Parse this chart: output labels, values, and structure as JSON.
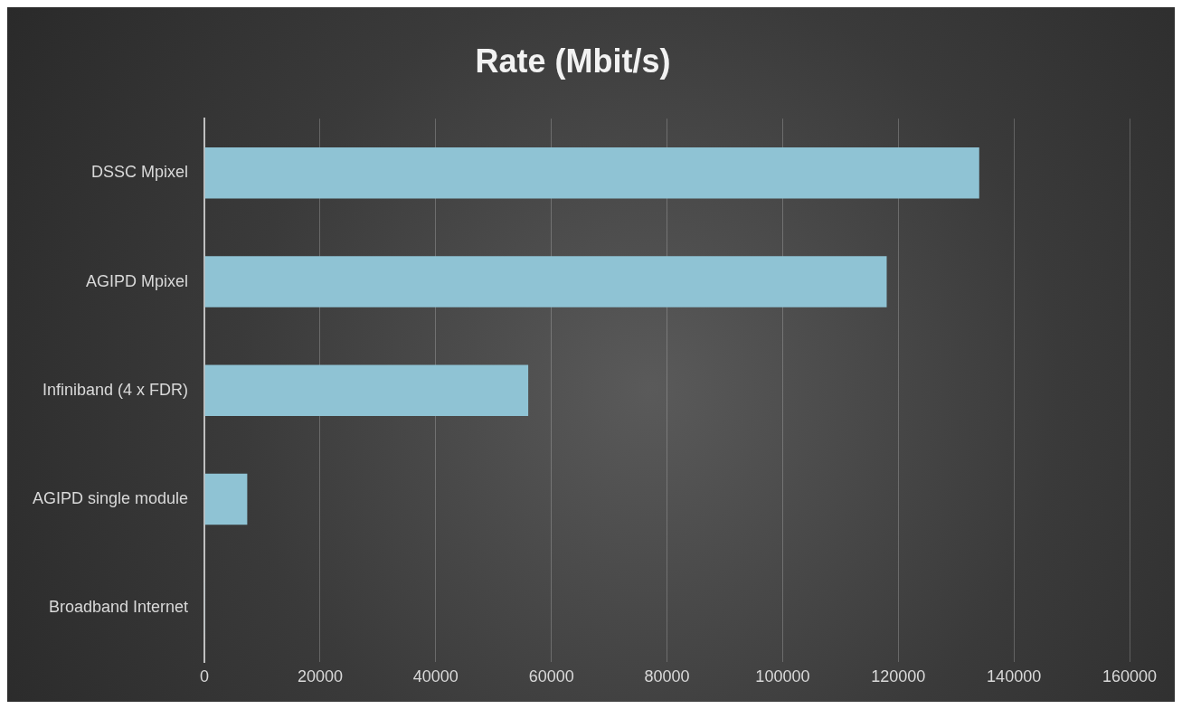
{
  "chart_data": {
    "type": "bar",
    "orientation": "horizontal",
    "title": "Rate (Mbit/s)",
    "categories": [
      "DSSC Mpixel",
      "AGIPD Mpixel",
      "Infiniband (4 x FDR)",
      "AGIPD single module",
      "Broadband Internet"
    ],
    "values": [
      134000,
      118000,
      56000,
      7400,
      100
    ],
    "color": "#8fc3d4",
    "xlim": [
      0,
      160000
    ],
    "xticks": [
      0,
      20000,
      40000,
      60000,
      80000,
      100000,
      120000,
      140000,
      160000
    ],
    "grid": "x",
    "legend": false
  }
}
